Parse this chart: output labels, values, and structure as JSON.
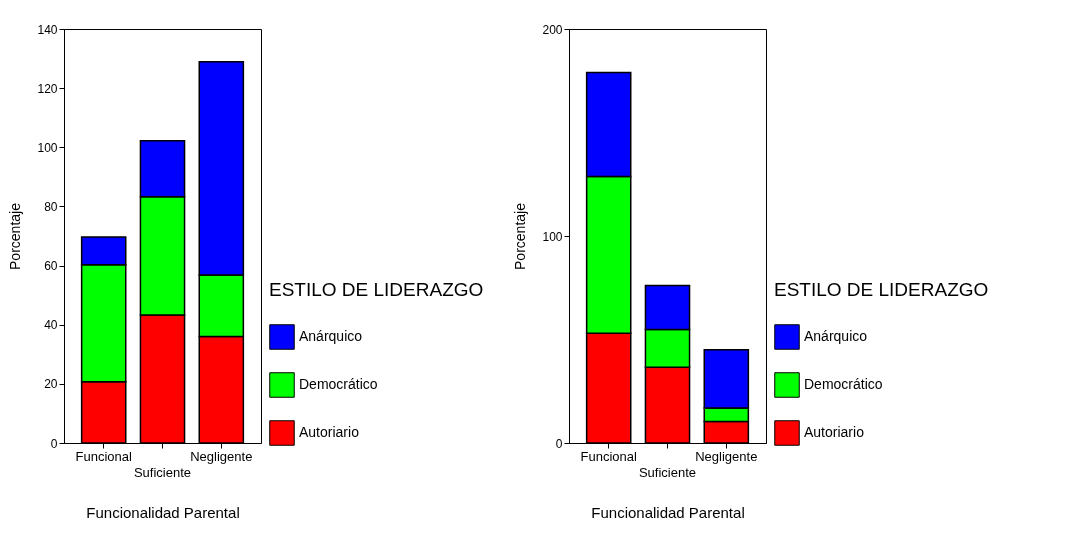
{
  "chart_data": [
    {
      "type": "bar",
      "stacked": true,
      "categories": [
        "Funcional",
        "Suficiente",
        "Negligente"
      ],
      "xlabel": "Funcionalidad Parental",
      "ylabel": "Porcentaje",
      "legend_title": "ESTILO DE LIDERAZGO",
      "legend": "right",
      "grid": false,
      "ylim": [
        0,
        140
      ],
      "yticks": [
        0,
        20,
        40,
        60,
        80,
        100,
        120,
        140
      ],
      "series": [
        {
          "name": "Autoriario",
          "color": "#ff0000",
          "values": [
            20.7,
            43.3,
            36
          ]
        },
        {
          "name": "Democrático",
          "color": "#00ff00",
          "values": [
            39.6,
            40,
            20.8
          ]
        },
        {
          "name": "Anárquico",
          "color": "#0000ff",
          "values": [
            9.4,
            18.9,
            72.1
          ]
        }
      ]
    },
    {
      "type": "bar",
      "stacked": true,
      "categories": [
        "Funcional",
        "Suficiente",
        "Negligente"
      ],
      "xlabel": "Funcionalidad Parental",
      "ylabel": "Porcentaje",
      "legend_title": "ESTILO DE LIDERAZGO",
      "legend": "right",
      "grid": false,
      "ylim": [
        0,
        200
      ],
      "yticks": [
        0,
        100,
        200
      ],
      "series": [
        {
          "name": "Autoriario",
          "color": "#ff0000",
          "values": [
            53,
            36.6,
            10.4
          ]
        },
        {
          "name": "Democrático",
          "color": "#00ff00",
          "values": [
            75.8,
            18.2,
            6.5
          ]
        },
        {
          "name": "Anárquico",
          "color": "#0000ff",
          "values": [
            50.2,
            21.3,
            28.1
          ]
        }
      ]
    }
  ]
}
